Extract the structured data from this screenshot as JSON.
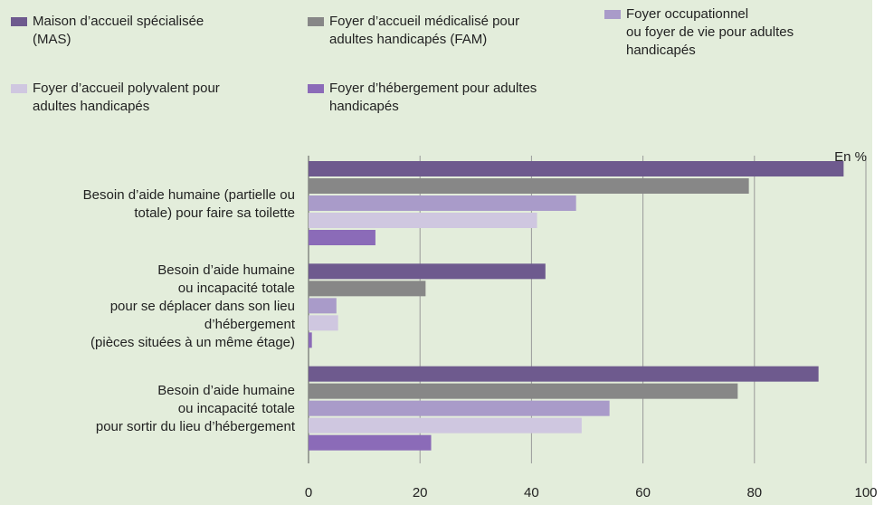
{
  "chart_data": {
    "type": "bar",
    "orientation": "horizontal",
    "unit_label": "En %",
    "categories": [
      "Besoin d’aide humaine (partielle ou\ntotale) pour faire sa toilette",
      "Besoin d’aide humaine\nou incapacité totale\npour se déplacer dans son lieu\nd’hébergement\n(pièces situées à un même étage)",
      "Besoin d’aide humaine\nou incapacité totale\npour sortir du lieu d’hébergement"
    ],
    "series": [
      {
        "name": "Maison d’accueil spécialisée\n(MAS)",
        "color": "#6e5a8e",
        "values": [
          96,
          42.5,
          91.5
        ]
      },
      {
        "name": "Foyer d’accueil médicalisé pour\nadultes handicapés (FAM)",
        "color": "#878787",
        "values": [
          79,
          21,
          77
        ]
      },
      {
        "name": "Foyer occupationnel\nou foyer de vie pour adultes\nhandicapés",
        "color": "#a99bc9",
        "values": [
          48,
          5,
          54
        ]
      },
      {
        "name": "Foyer d’accueil polyvalent pour\nadultes handicapés",
        "color": "#cfc7e0",
        "values": [
          41,
          5.3,
          49
        ]
      },
      {
        "name": "Foyer d’hébergement pour adultes\nhandicapés",
        "color": "#8b6bb8",
        "values": [
          12,
          0.6,
          22
        ]
      }
    ],
    "xlim": [
      0,
      100
    ],
    "xticks": [
      0,
      20,
      40,
      60,
      80,
      100
    ],
    "grid": true
  }
}
